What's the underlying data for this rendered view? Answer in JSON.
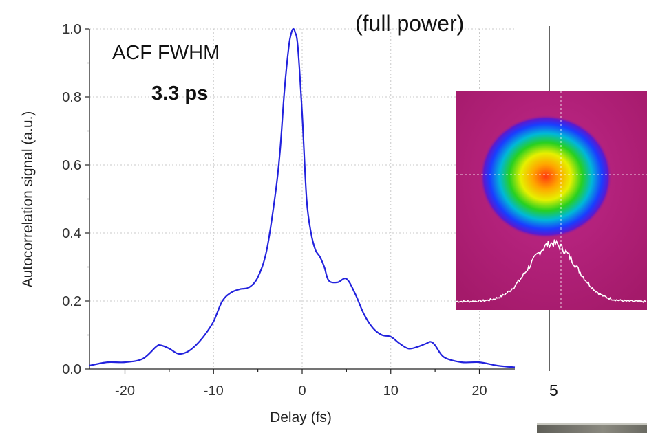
{
  "chart_data": {
    "type": "line",
    "xlabel": "Delay (fs)",
    "ylabel": "Autocorrelation signal (a.u.)",
    "xlim": [
      -24,
      24
    ],
    "ylim": [
      0,
      1.0
    ],
    "x_ticks": [
      "-20",
      "-10",
      "0",
      "10",
      "20"
    ],
    "y_ticks": [
      "0.0",
      "0.2",
      "0.4",
      "0.6",
      "0.8",
      "1.0"
    ],
    "grid": true,
    "series": [
      {
        "color": "#2222dd",
        "x": [
          -24,
          -22,
          -20,
          -18,
          -16.5,
          -16,
          -15,
          -14,
          -13,
          -12,
          -11,
          -10,
          -9,
          -8,
          -7,
          -6,
          -5,
          -4,
          -3,
          -2.5,
          -2,
          -1.5,
          -1.2,
          -1,
          -0.8,
          -0.5,
          0,
          0.5,
          1,
          1.5,
          2,
          2.5,
          3,
          4,
          5,
          6,
          7,
          8,
          9,
          10,
          11,
          12,
          13,
          14,
          14.5,
          15,
          16,
          18,
          20,
          22,
          24
        ],
        "y": [
          0.01,
          0.02,
          0.02,
          0.03,
          0.065,
          0.07,
          0.06,
          0.045,
          0.05,
          0.07,
          0.1,
          0.14,
          0.2,
          0.225,
          0.235,
          0.24,
          0.27,
          0.35,
          0.52,
          0.64,
          0.82,
          0.95,
          0.99,
          1.0,
          0.99,
          0.95,
          0.75,
          0.5,
          0.4,
          0.35,
          0.33,
          0.3,
          0.26,
          0.255,
          0.265,
          0.22,
          0.16,
          0.12,
          0.1,
          0.095,
          0.075,
          0.06,
          0.065,
          0.075,
          0.08,
          0.07,
          0.035,
          0.02,
          0.02,
          0.01,
          0.005
        ]
      }
    ],
    "annotations": [
      "ACF FWHM",
      "3.3 ps",
      "(full power)",
      "5"
    ]
  },
  "colors": {
    "line": "#2222dd",
    "grid": "#c8c8c8",
    "beam_background": "#b8207a"
  }
}
